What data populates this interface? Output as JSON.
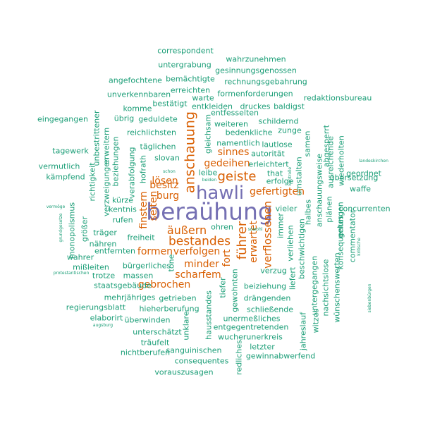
{
  "word_cloud": {
    "words": [
      {
        "text": "beraühung",
        "tier": 3
      },
      {
        "text": "hawli",
        "tier": 3
      },
      {
        "text": "bestandes",
        "tier": 2
      },
      {
        "text": "äußern",
        "tier": 2
      },
      {
        "text": "anschauung",
        "tier": 2
      },
      {
        "text": "geiste",
        "tier": 2
      },
      {
        "text": "führer",
        "tier": 2
      },
      {
        "text": "verflossenen",
        "tier": 2
      },
      {
        "text": "gebrochen",
        "tier": 2
      },
      {
        "text": "scharfem",
        "tier": 2
      },
      {
        "text": "formen",
        "tier": 2
      },
      {
        "text": "verfolgen",
        "tier": 2
      },
      {
        "text": "minder",
        "tier": 2
      },
      {
        "text": "besitz",
        "tier": 2
      },
      {
        "text": "burg",
        "tier": 2
      },
      {
        "text": "lösen",
        "tier": 2
      },
      {
        "text": "gefertigten",
        "tier": 2
      },
      {
        "text": "sinnes",
        "tier": 2
      },
      {
        "text": "gedeihen",
        "tier": 2
      },
      {
        "text": "finstern",
        "tier": 2
      },
      {
        "text": "seiten",
        "tier": 2
      },
      {
        "text": "erwartet",
        "tier": 2
      },
      {
        "text": "fort",
        "tier": 2
      },
      {
        "text": "correspondent",
        "tier": 1
      },
      {
        "text": "wahrzunehmen",
        "tier": 1
      },
      {
        "text": "untergrabung",
        "tier": 1
      },
      {
        "text": "gesinnungsgenossen",
        "tier": 1
      },
      {
        "text": "bemächtigte",
        "tier": 1
      },
      {
        "text": "angefochtene",
        "tier": 1
      },
      {
        "text": "rechnungsgebahrung",
        "tier": 1
      },
      {
        "text": "erreichten",
        "tier": 1
      },
      {
        "text": "unverkennbaren",
        "tier": 1
      },
      {
        "text": "formenforderungen",
        "tier": 1
      },
      {
        "text": "redaktionsbureau",
        "tier": 1
      },
      {
        "text": "warte",
        "tier": 1
      },
      {
        "text": "bestätigt",
        "tier": 1
      },
      {
        "text": "entkleiden",
        "tier": 1
      },
      {
        "text": "druckes",
        "tier": 1
      },
      {
        "text": "baldigst",
        "tier": 1
      },
      {
        "text": "komme",
        "tier": 1
      },
      {
        "text": "entfesselten",
        "tier": 1
      },
      {
        "text": "übrig",
        "tier": 1
      },
      {
        "text": "geduldete",
        "tier": 1
      },
      {
        "text": "schildernd",
        "tier": 1
      },
      {
        "text": "eingegangen",
        "tier": 1
      },
      {
        "text": "weiteren",
        "tier": 1
      },
      {
        "text": "zunge",
        "tier": 1
      },
      {
        "text": "reichlichsten",
        "tier": 1
      },
      {
        "text": "bedenkliche",
        "tier": 1
      },
      {
        "text": "namentlich",
        "tier": 1
      },
      {
        "text": "lautlose",
        "tier": 1
      },
      {
        "text": "tagewerk",
        "tier": 1
      },
      {
        "text": "täglichen",
        "tier": 1
      },
      {
        "text": "autorität",
        "tier": 1
      },
      {
        "text": "vermutlich",
        "tier": 1
      },
      {
        "text": "slovan",
        "tier": 1
      },
      {
        "text": "erleichtert",
        "tier": 1
      },
      {
        "text": "kämpfend",
        "tier": 1
      },
      {
        "text": "leibe",
        "tier": 1
      },
      {
        "text": "that",
        "tier": 1
      },
      {
        "text": "geordnet",
        "tier": 1
      },
      {
        "text": "erfolge",
        "tier": 1
      },
      {
        "text": "übersetzung",
        "tier": 1
      },
      {
        "text": "waffe",
        "tier": 1
      },
      {
        "text": "kürze",
        "tier": 1
      },
      {
        "text": "kentnis",
        "tier": 1
      },
      {
        "text": "vieler",
        "tier": 1
      },
      {
        "text": "concurrenten",
        "tier": 1
      },
      {
        "text": "rufen",
        "tier": 1
      },
      {
        "text": "träger",
        "tier": 1
      },
      {
        "text": "ohren",
        "tier": 1
      },
      {
        "text": "freiheit",
        "tier": 1
      },
      {
        "text": "entfernten",
        "tier": 1
      },
      {
        "text": "wahrer",
        "tier": 1
      },
      {
        "text": "nähren",
        "tier": 1
      },
      {
        "text": "mißleiten",
        "tier": 1
      },
      {
        "text": "bürgerliches",
        "tier": 1
      },
      {
        "text": "trotze",
        "tier": 1
      },
      {
        "text": "massen",
        "tier": 1
      },
      {
        "text": "verzug",
        "tier": 1
      },
      {
        "text": "staatsgebäude",
        "tier": 1
      },
      {
        "text": "beiziehung",
        "tier": 1
      },
      {
        "text": "mehrjähriges",
        "tier": 1
      },
      {
        "text": "getrieben",
        "tier": 1
      },
      {
        "text": "drängenden",
        "tier": 1
      },
      {
        "text": "regierungsblatt",
        "tier": 1
      },
      {
        "text": "hieherberufung",
        "tier": 1
      },
      {
        "text": "schließende",
        "tier": 1
      },
      {
        "text": "elaborirt",
        "tier": 1
      },
      {
        "text": "überwinden",
        "tier": 1
      },
      {
        "text": "unermeßliches",
        "tier": 1
      },
      {
        "text": "unterschätzt",
        "tier": 1
      },
      {
        "text": "entgegentretenden",
        "tier": 1
      },
      {
        "text": "träufelt",
        "tier": 1
      },
      {
        "text": "wucherunerkreis",
        "tier": 1
      },
      {
        "text": "sanguinischen",
        "tier": 1
      },
      {
        "text": "letzter",
        "tier": 1
      },
      {
        "text": "nichtberufen",
        "tier": 1
      },
      {
        "text": "gewinnabwerfend",
        "tier": 1
      },
      {
        "text": "consequentes",
        "tier": 1
      },
      {
        "text": "vorauszusagen",
        "tier": 1
      },
      {
        "text": "unbestrittener",
        "tier": 1
      },
      {
        "text": "verzweigungen",
        "tier": 1
      },
      {
        "text": "richtigkeit",
        "tier": 1
      },
      {
        "text": "erweitern",
        "tier": 1
      },
      {
        "text": "beziehungen",
        "tier": 1
      },
      {
        "text": "verabfolgung",
        "tier": 1
      },
      {
        "text": "hofrath",
        "tier": 1
      },
      {
        "text": "größer",
        "tier": 1
      },
      {
        "text": "monopolismus",
        "tier": 1
      },
      {
        "text": "gleichsam",
        "tier": 1
      },
      {
        "text": "immer",
        "tier": 1
      },
      {
        "text": "tone",
        "tier": 1
      },
      {
        "text": "hausstandes",
        "tier": 1
      },
      {
        "text": "tiefer",
        "tier": 1
      },
      {
        "text": "gewohnten",
        "tier": 1
      },
      {
        "text": "unklare",
        "tier": 1
      },
      {
        "text": "redliches",
        "tier": 1
      },
      {
        "text": "liefert",
        "tier": 1
      },
      {
        "text": "jahreslauf",
        "tier": 1
      },
      {
        "text": "verliehen",
        "tier": 1
      },
      {
        "text": "beschwichtigen",
        "tier": 1
      },
      {
        "text": "halbes",
        "tier": 1
      },
      {
        "text": "untergegangen",
        "tier": 1
      },
      {
        "text": "witzes",
        "tier": 1
      },
      {
        "text": "umstalten",
        "tier": 1
      },
      {
        "text": "samen",
        "tier": 1
      },
      {
        "text": "anschauungsweise",
        "tier": 1
      },
      {
        "text": "nachsichtslose",
        "tier": 1
      },
      {
        "text": "wünschenswerten",
        "tier": 1
      },
      {
        "text": "abgesperrt",
        "tier": 1
      },
      {
        "text": "plänen",
        "tier": 1
      },
      {
        "text": "ausreichende",
        "tier": 1
      },
      {
        "text": "konsequentes",
        "tier": 1
      },
      {
        "text": "gelungen",
        "tier": 1
      },
      {
        "text": "wiederholten",
        "tier": 1
      },
      {
        "text": "commentator",
        "tier": 1
      },
      {
        "text": "vermöge",
        "tier": 1
      },
      {
        "text": "grundgesetze",
        "tier": 1
      },
      {
        "text": "protestantischen",
        "tier": 1
      },
      {
        "text": "augsburg",
        "tier": 1
      },
      {
        "text": "schon",
        "tier": 1
      },
      {
        "text": "beiden",
        "tier": 1
      },
      {
        "text": "sowohl",
        "tier": 1
      },
      {
        "text": "landeskirchen",
        "tier": 1
      },
      {
        "text": "siebenbürgen",
        "tier": 1
      },
      {
        "text": "kontrolle",
        "tier": 1
      },
      {
        "text": "kritische",
        "tier": 1
      }
    ]
  }
}
